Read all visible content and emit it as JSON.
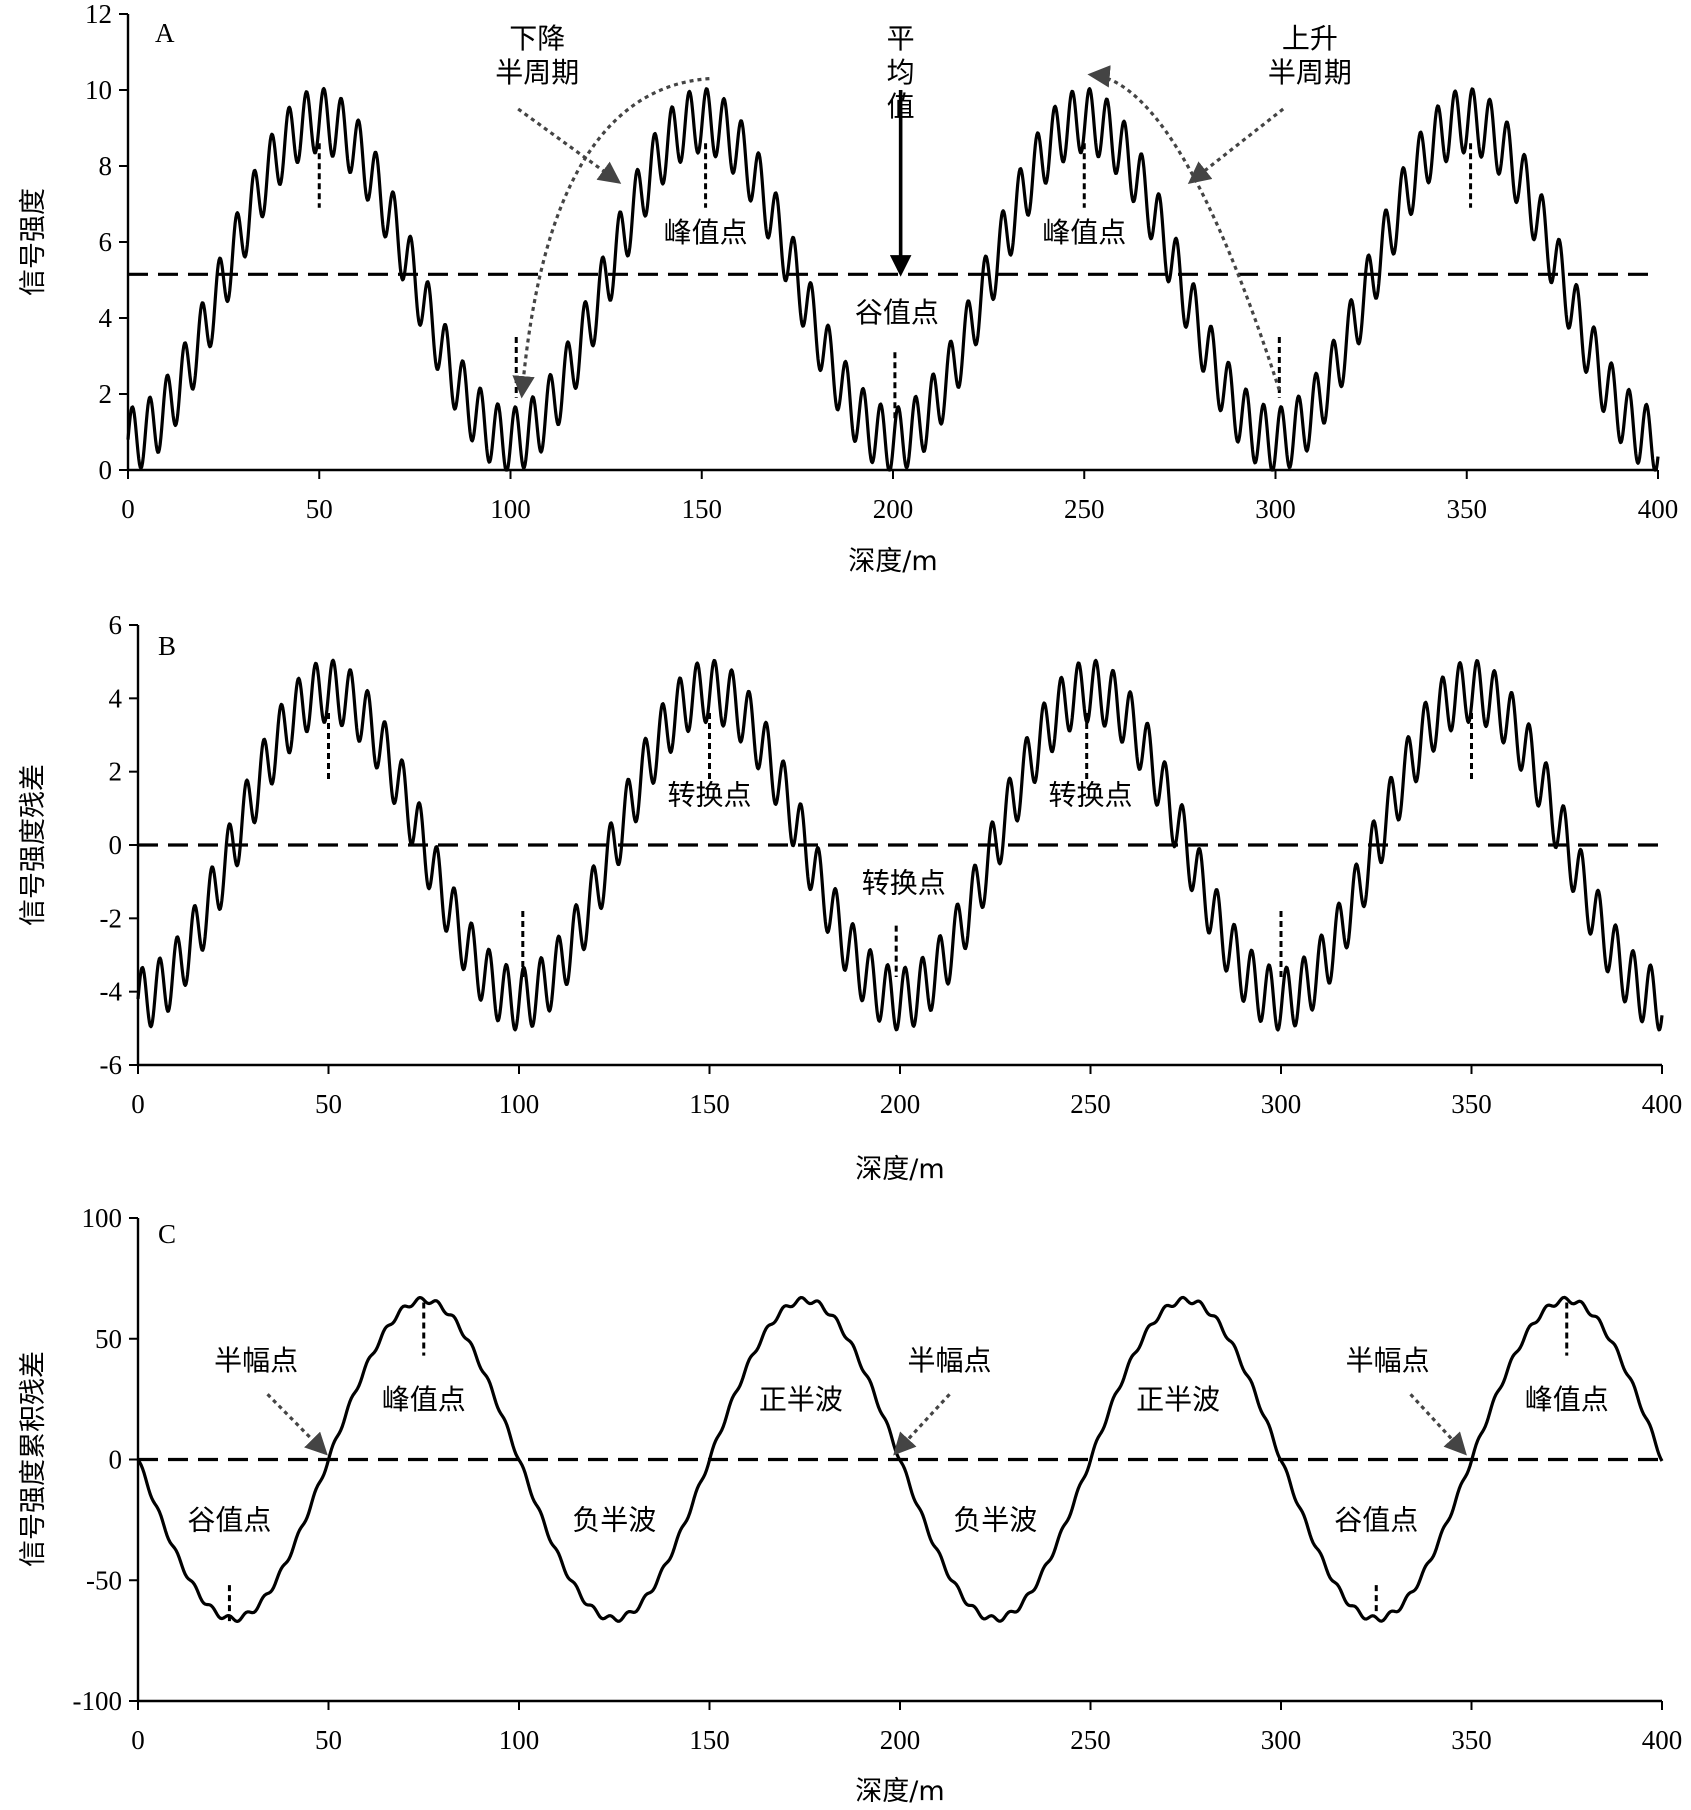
{
  "colors": {
    "line": "#000000",
    "dotted_arrow": "#444444"
  },
  "chart_data": [
    {
      "type": "line",
      "panel": "A",
      "xlabel": "深度/m",
      "ylabel": "信号强度",
      "xlim": [
        0,
        400
      ],
      "ylim": [
        0,
        12
      ],
      "xticks": [
        0,
        50,
        100,
        150,
        200,
        250,
        300,
        350,
        400
      ],
      "yticks": [
        0,
        2,
        4,
        6,
        8,
        10,
        12
      ],
      "series": [
        {
          "formula": "5 + 4.2*sin(2*pi*(x-25)/100) + 0.85*sin(2*pi*x/4.55)",
          "x_range": [
            0,
            400
          ],
          "samples": 2000
        }
      ],
      "reference_line": {
        "y": 5.15,
        "style": "dashed"
      },
      "markers": [
        {
          "x": 50,
          "y0": 8.6,
          "y1": 6.9
        },
        {
          "x": 101.5,
          "y0": 3.5,
          "y1": 1.9
        },
        {
          "x": 151,
          "y0": 8.6,
          "y1": 6.9
        },
        {
          "x": 200.5,
          "y0": 3.1,
          "y1": 1.3
        },
        {
          "x": 250,
          "y0": 8.6,
          "y1": 6.9
        },
        {
          "x": 301,
          "y0": 3.5,
          "y1": 1.9
        },
        {
          "x": 351,
          "y0": 8.6,
          "y1": 6.9
        }
      ],
      "annotations": [
        {
          "lines": [
            "下降",
            "半周期"
          ],
          "x": 107,
          "y": 11.1
        },
        {
          "lines": [
            "平",
            "均",
            "值"
          ],
          "x": 202,
          "y": 11.1
        },
        {
          "lines": [
            "上升",
            "半周期"
          ],
          "x": 309,
          "y": 11.1
        },
        {
          "lines": [
            "峰值点"
          ],
          "x": 151,
          "y": 6.0
        },
        {
          "lines": [
            "谷值点"
          ],
          "x": 201,
          "y": 3.9
        },
        {
          "lines": [
            "峰值点"
          ],
          "x": 250,
          "y": 6.0
        }
      ],
      "arrows": [
        {
          "style": "dotted",
          "from": [
            152,
            10.3
          ],
          "via": [
            110,
            10.0
          ],
          "to": [
            103,
            2.0
          ]
        },
        {
          "style": "dotted",
          "from": [
            301,
            2.1
          ],
          "via": [
            275,
            10.2
          ],
          "to": [
            252,
            10.4
          ]
        },
        {
          "style": "dotted",
          "from": [
            102,
            9.5
          ],
          "to": [
            128,
            7.6
          ]
        },
        {
          "style": "dotted",
          "from": [
            302,
            9.5
          ],
          "to": [
            278,
            7.6
          ]
        },
        {
          "style": "solid",
          "from": [
            202,
            10.0
          ],
          "to": [
            202,
            5.2
          ]
        }
      ]
    },
    {
      "type": "line",
      "panel": "B",
      "xlabel": "深度/m",
      "ylabel": "信号强度残差",
      "xlim": [
        0,
        400
      ],
      "ylim": [
        -6,
        6
      ],
      "xticks": [
        0,
        50,
        100,
        150,
        200,
        250,
        300,
        350,
        400
      ],
      "yticks": [
        -6,
        -4,
        -2,
        0,
        2,
        4,
        6
      ],
      "series": [
        {
          "formula": "4.2*sin(2*pi*(x-25)/100) + 0.85*sin(2*pi*x/4.55)",
          "x_range": [
            0,
            400
          ],
          "samples": 2000
        }
      ],
      "reference_line": {
        "y": 0,
        "style": "dashed"
      },
      "markers": [
        {
          "x": 50,
          "y0": 3.6,
          "y1": 1.8
        },
        {
          "x": 101,
          "y0": -1.8,
          "y1": -3.6
        },
        {
          "x": 150,
          "y0": 3.6,
          "y1": 1.8
        },
        {
          "x": 199,
          "y0": -2.2,
          "y1": -3.6
        },
        {
          "x": 249,
          "y0": 3.6,
          "y1": 1.8
        },
        {
          "x": 300,
          "y0": -1.8,
          "y1": -3.6
        },
        {
          "x": 350,
          "y0": 3.6,
          "y1": 1.8
        }
      ],
      "annotations": [
        {
          "lines": [
            "转换点"
          ],
          "x": 150,
          "y": 1.1
        },
        {
          "lines": [
            "转换点"
          ],
          "x": 201,
          "y": -1.3
        },
        {
          "lines": [
            "转换点"
          ],
          "x": 250,
          "y": 1.1
        }
      ]
    },
    {
      "type": "line",
      "panel": "C",
      "xlabel": "深度/m",
      "ylabel": "信号强度累积残差",
      "xlim": [
        0,
        400
      ],
      "ylim": [
        -100,
        100
      ],
      "xticks": [
        0,
        50,
        100,
        150,
        200,
        250,
        300,
        350,
        400
      ],
      "yticks": [
        -100,
        -50,
        0,
        50,
        100
      ],
      "series": [
        {
          "formula": "-66*sin(2*pi*x/100) + 1.2*sin(2*pi*x/4.55)",
          "x_range": [
            0,
            400
          ],
          "samples": 1000
        }
      ],
      "reference_line": {
        "y": 0,
        "style": "dashed"
      },
      "markers": [
        {
          "x": 24,
          "y0": -52,
          "y1": -67
        },
        {
          "x": 75,
          "y0": 65,
          "y1": 43
        },
        {
          "x": 325,
          "y0": -52,
          "y1": -64
        },
        {
          "x": 375,
          "y0": 65,
          "y1": 43
        }
      ],
      "annotations": [
        {
          "lines": [
            "半幅点"
          ],
          "x": 31,
          "y": 37
        },
        {
          "lines": [
            "峰值点"
          ],
          "x": 75,
          "y": 21
        },
        {
          "lines": [
            "正半波"
          ],
          "x": 174,
          "y": 21
        },
        {
          "lines": [
            "半幅点"
          ],
          "x": 213,
          "y": 37
        },
        {
          "lines": [
            "正半波"
          ],
          "x": 273,
          "y": 21
        },
        {
          "lines": [
            "半幅点"
          ],
          "x": 328,
          "y": 37
        },
        {
          "lines": [
            "峰值点"
          ],
          "x": 375,
          "y": 21
        },
        {
          "lines": [
            "谷值点"
          ],
          "x": 24,
          "y": -29
        },
        {
          "lines": [
            "负半波"
          ],
          "x": 125,
          "y": -29
        },
        {
          "lines": [
            "负半波"
          ],
          "x": 225,
          "y": -29
        },
        {
          "lines": [
            "谷值点"
          ],
          "x": 325,
          "y": -29
        }
      ],
      "arrows": [
        {
          "style": "dotted",
          "from": [
            34,
            27
          ],
          "to": [
            49,
            3
          ]
        },
        {
          "style": "dotted",
          "from": [
            213,
            27
          ],
          "to": [
            199,
            3
          ]
        },
        {
          "style": "dotted",
          "from": [
            334,
            27
          ],
          "to": [
            348,
            3
          ]
        }
      ]
    }
  ]
}
